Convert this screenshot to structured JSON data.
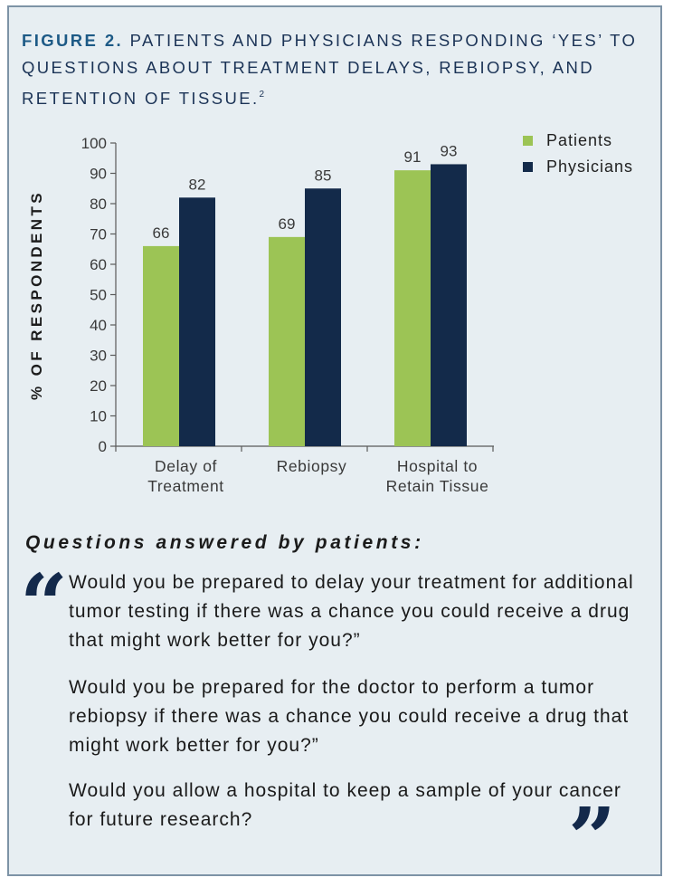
{
  "figure": {
    "number_label": "FIGURE 2.",
    "title": "PATIENTS AND PHYSICIANS RESPONDING ‘YES’ TO QUESTIONS ABOUT TREATMENT DELAYS, REBIOPSY, AND RETENTION OF TISSUE.",
    "reference": "2"
  },
  "chart_data": {
    "type": "bar",
    "categories": [
      [
        "Delay of",
        "Treatment"
      ],
      [
        "Rebiopsy"
      ],
      [
        "Hospital to",
        "Retain Tissue"
      ]
    ],
    "series": [
      {
        "name": "Patients",
        "values": [
          66,
          69,
          91
        ],
        "color": "#9cc455"
      },
      {
        "name": "Physicians",
        "values": [
          82,
          85,
          93
        ],
        "color": "#132a4a"
      }
    ],
    "ylabel": "% OF RESPONDENTS",
    "ylim": [
      0,
      100
    ],
    "yticks": [
      0,
      10,
      20,
      30,
      40,
      50,
      60,
      70,
      80,
      90,
      100
    ],
    "legend_position": "top-right",
    "grid": false,
    "data_labels": true
  },
  "patients_section": {
    "heading": "Questions answered by patients:",
    "open_quote": "“",
    "close_quote": "”",
    "questions": [
      "Would you be prepared to delay your treatment for additional tumor testing if there was a chance you could receive a drug that might work better for you?”",
      "Would you be prepared for the doctor to perform a tumor rebiopsy if there was a chance you could receive a drug that might work better for you?”",
      "Would you allow a hospital to keep a sample of your cancer for future research?"
    ]
  }
}
